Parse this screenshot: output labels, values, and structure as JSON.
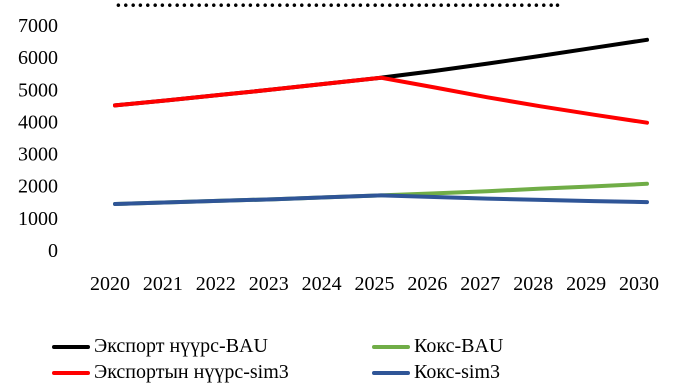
{
  "chart_data": {
    "type": "line",
    "title": "…………………………………………………….",
    "xlabel": "",
    "ylabel": "",
    "categories": [
      "2020",
      "2021",
      "2022",
      "2023",
      "2024",
      "2025",
      "2026",
      "2027",
      "2028",
      "2029",
      "2030"
    ],
    "ylim": [
      0,
      7000
    ],
    "yticks": [
      "0",
      "1000",
      "2000",
      "3000",
      "4000",
      "5000",
      "6000",
      "7000"
    ],
    "grid": false,
    "legend_position": "bottom",
    "series": [
      {
        "name": "Экспорт нүүрс-BAU",
        "color": "#000000",
        "values": [
          4500,
          4660,
          4830,
          5000,
          5180,
          5360,
          5570,
          5800,
          6040,
          6290,
          6540
        ]
      },
      {
        "name": "Экспортын нүүрс-sim3",
        "color": "#ff0000",
        "values": [
          4500,
          4660,
          4830,
          5000,
          5180,
          5360,
          5060,
          4750,
          4470,
          4210,
          3960
        ]
      },
      {
        "name": "Кокс-BAU",
        "color": "#70ad47",
        "values": [
          1430,
          1480,
          1530,
          1580,
          1640,
          1700,
          1760,
          1830,
          1910,
          1980,
          2060
        ]
      },
      {
        "name": "Кокс-sim3",
        "color": "#2f5597",
        "values": [
          1430,
          1480,
          1530,
          1580,
          1640,
          1700,
          1650,
          1600,
          1560,
          1520,
          1490
        ]
      }
    ]
  }
}
